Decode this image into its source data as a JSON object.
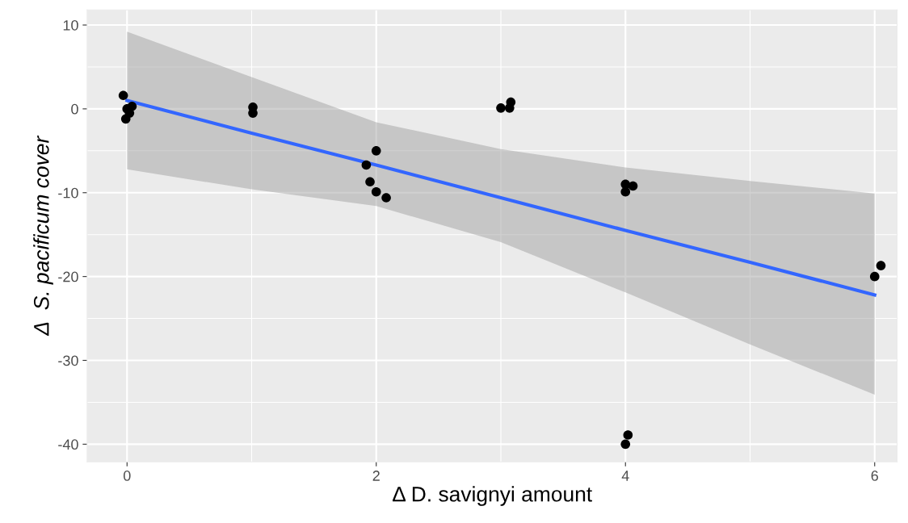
{
  "chart_data": {
    "type": "scatter",
    "xlabel": "Δ D. savignyi amount",
    "ylabel": "Δ  S. pacificum cover",
    "xlim": [
      -0.32,
      6.18
    ],
    "ylim": [
      -42.1,
      11.8
    ],
    "xticks": [
      0,
      2,
      4,
      6
    ],
    "yticks": [
      -40,
      -30,
      -20,
      -10,
      0,
      10
    ],
    "grid": true,
    "series": [
      {
        "marker": "circle",
        "color": "#000000",
        "x": [
          -0.03,
          0,
          0.04,
          0.02,
          -0.01,
          1.01,
          1.01,
          2,
          1.92,
          1.95,
          2,
          2.08,
          3.0,
          3.07,
          3.08,
          4,
          4,
          4.06,
          4,
          4.02,
          6,
          6.05
        ],
        "values": [
          1.6,
          0,
          0.3,
          -0.5,
          -1.2,
          0.2,
          -0.5,
          -5.0,
          -6.7,
          -8.7,
          -9.9,
          -10.6,
          0.1,
          0.1,
          0.8,
          -9.0,
          -9.9,
          -9.2,
          -40,
          -38.9,
          -20,
          -18.7
        ]
      },
      {
        "type": "line",
        "color": "#3366ff",
        "x": [
          0,
          1,
          2,
          3,
          4,
          5,
          6
        ],
        "values": [
          1.0,
          -2.9,
          -6.7,
          -10.6,
          -14.5,
          -18.3,
          -22.2
        ],
        "upper": [
          9.2,
          3.8,
          -1.6,
          -4.8,
          -7.0,
          -8.6,
          -10.1
        ],
        "lower": [
          -7.2,
          -9.6,
          -11.6,
          -15.9,
          -21.9,
          -28.1,
          -34.1
        ]
      }
    ]
  }
}
